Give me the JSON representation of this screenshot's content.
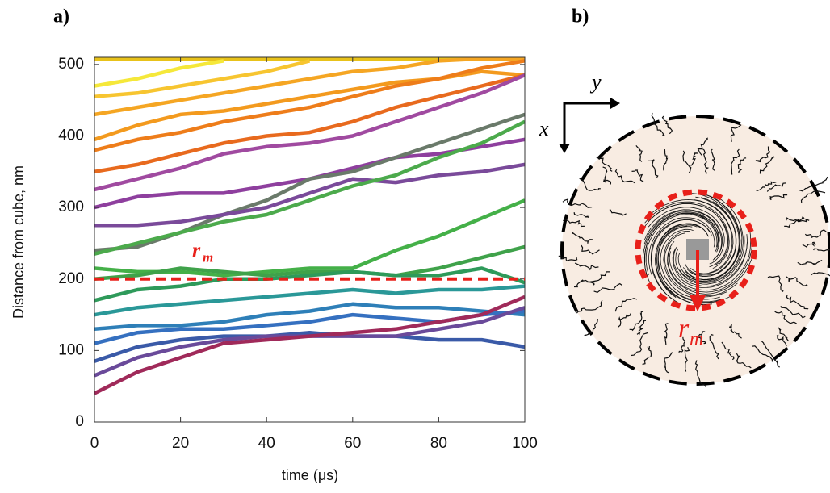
{
  "chart_data": {
    "type": "line",
    "panel_label": "a)",
    "x_label": "time (μs)",
    "y_label": "Distance from cube, nm",
    "x": [
      0,
      10,
      20,
      30,
      40,
      50,
      60,
      70,
      80,
      90,
      100
    ],
    "xlim": [
      0,
      100
    ],
    "ylim": [
      0,
      510
    ],
    "xticks": [
      0,
      20,
      40,
      60,
      80,
      100
    ],
    "yticks": [
      0,
      100,
      200,
      300,
      400,
      500
    ],
    "reference_line": {
      "value": 200,
      "color": "#e8201a",
      "label": "r",
      "subscript": "m"
    },
    "series": [
      {
        "color": "#e8c21a",
        "values": [
          508,
          508,
          508,
          508,
          508,
          508,
          508,
          508,
          508,
          508,
          508
        ]
      },
      {
        "color": "#f5e83a",
        "values": [
          470,
          480,
          495,
          505,
          null,
          null,
          null,
          null,
          null,
          null,
          null
        ]
      },
      {
        "color": "#f7c530",
        "values": [
          455,
          460,
          470,
          480,
          490,
          505,
          null,
          null,
          null,
          null,
          null
        ]
      },
      {
        "color": "#f5a623",
        "values": [
          430,
          440,
          450,
          460,
          470,
          480,
          490,
          495,
          505,
          508,
          508
        ]
      },
      {
        "color": "#f39a1e",
        "values": [
          395,
          415,
          430,
          435,
          445,
          455,
          465,
          475,
          480,
          490,
          485
        ]
      },
      {
        "color": "#ee7d1a",
        "values": [
          380,
          395,
          405,
          420,
          430,
          440,
          455,
          470,
          480,
          495,
          505
        ]
      },
      {
        "color": "#e86a1e",
        "values": [
          350,
          360,
          375,
          390,
          400,
          405,
          420,
          440,
          455,
          470,
          485
        ]
      },
      {
        "color": "#a04aa0",
        "values": [
          325,
          340,
          355,
          375,
          385,
          390,
          400,
          420,
          440,
          460,
          485
        ]
      },
      {
        "color": "#8e3f9e",
        "values": [
          300,
          315,
          320,
          320,
          330,
          340,
          355,
          370,
          375,
          385,
          395
        ]
      },
      {
        "color": "#6a7a6a",
        "values": [
          240,
          245,
          265,
          290,
          310,
          340,
          350,
          370,
          390,
          410,
          430
        ]
      },
      {
        "color": "#7a4a9a",
        "values": [
          275,
          275,
          280,
          290,
          300,
          320,
          340,
          335,
          345,
          350,
          360
        ]
      },
      {
        "color": "#4caa4c",
        "values": [
          235,
          250,
          265,
          280,
          290,
          310,
          330,
          345,
          370,
          390,
          420
        ]
      },
      {
        "color": "#44b048",
        "values": [
          215,
          210,
          210,
          205,
          210,
          215,
          215,
          240,
          260,
          285,
          310
        ]
      },
      {
        "color": "#3fa24a",
        "values": [
          200,
          205,
          215,
          210,
          205,
          210,
          210,
          205,
          215,
          230,
          245
        ]
      },
      {
        "color": "#2e9a5a",
        "values": [
          170,
          185,
          190,
          200,
          200,
          205,
          210,
          205,
          205,
          215,
          195
        ]
      },
      {
        "color": "#2a9898",
        "values": [
          150,
          160,
          165,
          170,
          175,
          180,
          185,
          180,
          185,
          185,
          190
        ]
      },
      {
        "color": "#2e7fb8",
        "values": [
          130,
          135,
          135,
          140,
          150,
          155,
          165,
          160,
          160,
          155,
          150
        ]
      },
      {
        "color": "#3570c0",
        "values": [
          110,
          125,
          130,
          130,
          135,
          140,
          150,
          145,
          140,
          150,
          155
        ]
      },
      {
        "color": "#3a5aa8",
        "values": [
          85,
          105,
          115,
          120,
          120,
          125,
          120,
          120,
          115,
          115,
          105
        ]
      },
      {
        "color": "#6a4a9a",
        "values": [
          65,
          90,
          105,
          115,
          120,
          120,
          120,
          120,
          130,
          140,
          160
        ]
      },
      {
        "color": "#a02a5a",
        "values": [
          40,
          70,
          90,
          110,
          115,
          120,
          125,
          130,
          140,
          150,
          175
        ]
      }
    ]
  },
  "panel_b": {
    "label": "b)",
    "axis_x": "x",
    "axis_y": "y",
    "radius_label": "r",
    "radius_subscript": "m"
  }
}
